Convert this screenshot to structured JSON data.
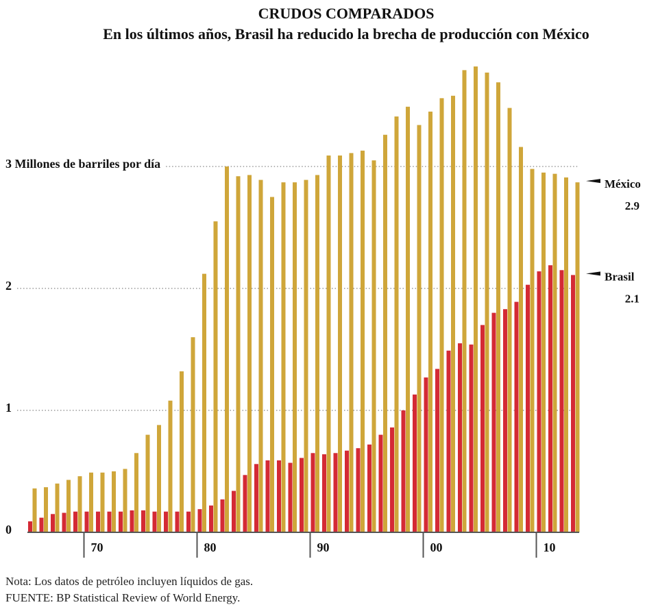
{
  "chart_data": {
    "type": "bar",
    "title": "CRUDOS COMPARADOS",
    "subtitle": "En los últimos años, Brasil ha reducido la brecha de producción con México",
    "categories": [
      null,
      null,
      null,
      null,
      null,
      "70",
      null,
      null,
      null,
      null,
      null,
      null,
      null,
      null,
      null,
      "80",
      null,
      null,
      null,
      null,
      null,
      null,
      null,
      null,
      null,
      "90",
      null,
      null,
      null,
      null,
      null,
      null,
      null,
      null,
      null,
      "00",
      null,
      null,
      null,
      null,
      null,
      null,
      null,
      null,
      null,
      "10",
      null,
      null,
      null
    ],
    "series": [
      {
        "name": "Brasil",
        "color": "#d42a35",
        "end_value": 2.1,
        "values": [
          0.09,
          0.12,
          0.15,
          0.16,
          0.17,
          0.17,
          0.17,
          0.17,
          0.17,
          0.18,
          0.18,
          0.17,
          0.17,
          0.17,
          0.17,
          0.19,
          0.22,
          0.27,
          0.34,
          0.47,
          0.56,
          0.59,
          0.59,
          0.57,
          0.61,
          0.65,
          0.64,
          0.65,
          0.67,
          0.69,
          0.72,
          0.8,
          0.86,
          1.0,
          1.13,
          1.27,
          1.34,
          1.49,
          1.55,
          1.54,
          1.7,
          1.8,
          1.83,
          1.89,
          2.03,
          2.14,
          2.19,
          2.15,
          2.11
        ]
      },
      {
        "name": "México",
        "color": "#cfa63a",
        "end_value": 2.9,
        "values": [
          0.36,
          0.37,
          0.4,
          0.43,
          0.46,
          0.49,
          0.49,
          0.5,
          0.52,
          0.65,
          0.8,
          0.88,
          1.08,
          1.32,
          1.6,
          2.12,
          2.55,
          3.0,
          2.92,
          2.93,
          2.89,
          2.75,
          2.87,
          2.87,
          2.89,
          2.93,
          3.09,
          3.09,
          3.11,
          3.13,
          3.05,
          3.26,
          3.41,
          3.49,
          3.34,
          3.45,
          3.56,
          3.58,
          3.79,
          3.82,
          3.77,
          3.69,
          3.48,
          3.16,
          2.98,
          2.95,
          2.94,
          2.91,
          2.87
        ]
      }
    ],
    "ylim": [
      0,
      4
    ],
    "yticks": [
      0,
      1,
      2,
      {
        "value": 3,
        "label": "3 Millones de barriles por día"
      }
    ],
    "grid": true,
    "notes": [
      "Nota: Los datos de petróleo incluyen líquidos de gas.",
      "FUENTE: BP Statistical Review of World Energy."
    ]
  }
}
